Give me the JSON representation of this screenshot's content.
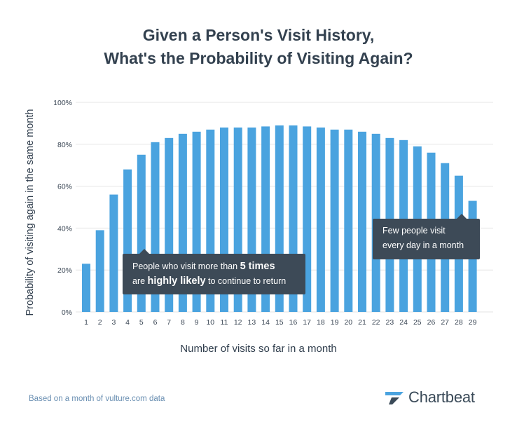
{
  "title": {
    "line1": "Given a Person's Visit History,",
    "line2": "What's the Probability of Visiting Again?"
  },
  "chart_data": {
    "type": "bar",
    "categories": [
      "1",
      "2",
      "3",
      "4",
      "5",
      "6",
      "7",
      "8",
      "9",
      "10",
      "11",
      "12",
      "13",
      "14",
      "15",
      "16",
      "17",
      "18",
      "19",
      "20",
      "21",
      "22",
      "23",
      "24",
      "25",
      "26",
      "27",
      "28",
      "29"
    ],
    "values": [
      0.23,
      0.39,
      0.56,
      0.68,
      0.75,
      0.81,
      0.83,
      0.85,
      0.86,
      0.87,
      0.88,
      0.88,
      0.88,
      0.885,
      0.89,
      0.89,
      0.885,
      0.88,
      0.87,
      0.87,
      0.86,
      0.85,
      0.83,
      0.82,
      0.79,
      0.76,
      0.71,
      0.65,
      0.53
    ],
    "ylim": [
      0,
      1
    ],
    "yticks": [
      "0%",
      "20%",
      "40%",
      "60%",
      "80%",
      "100%"
    ],
    "ylabel": "Probability of visiting again in the same month",
    "xlabel": "Number of visits so far in a month",
    "bar_color": "#4aa3df",
    "grid": true
  },
  "callouts": {
    "left": {
      "line1_pre": "People who visit more than ",
      "line1_bold": "5 times",
      "line2_pre": "are ",
      "line2_bold": "highly likely",
      "line2_post": " to continue to return"
    },
    "right": {
      "line1": "Few people visit",
      "line2": "every day in a month"
    }
  },
  "footer": {
    "note": "Based on a month of vulture.com data",
    "brand": "Chartbeat",
    "brand_icon": "chartbeat-logo-icon"
  }
}
